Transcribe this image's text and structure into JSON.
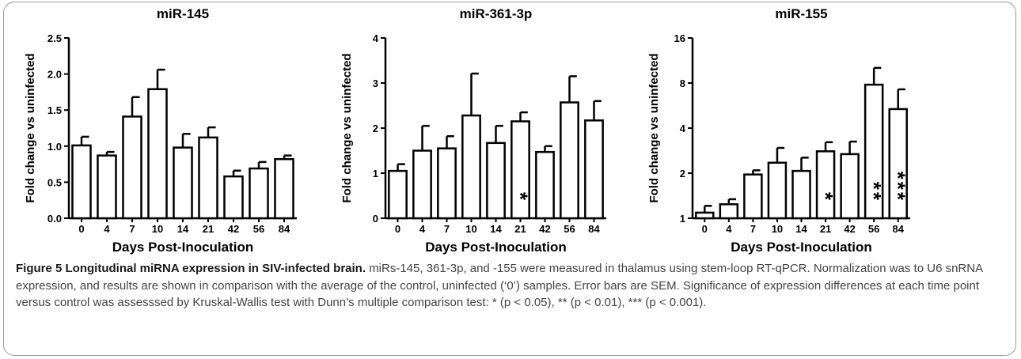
{
  "chart_data": [
    {
      "type": "bar",
      "title": "miR-145",
      "xlabel": "Days Post-Inoculation",
      "ylabel": "Fold change vs uninfected",
      "categories": [
        "0",
        "4",
        "7",
        "10",
        "14",
        "21",
        "42",
        "56",
        "84"
      ],
      "values": [
        1.01,
        0.87,
        1.41,
        1.79,
        0.98,
        1.12,
        0.58,
        0.69,
        0.82
      ],
      "errors": [
        0.12,
        0.05,
        0.27,
        0.27,
        0.19,
        0.14,
        0.08,
        0.09,
        0.05
      ],
      "ylim": [
        0,
        2.5
      ],
      "yticks": [
        {
          "value": 0,
          "label": "0.0"
        },
        0.5,
        {
          "value": 1,
          "label": "1.0"
        },
        1.5,
        {
          "value": 2,
          "label": "2.0"
        },
        2.5
      ],
      "color": "#ffffff",
      "annotations": []
    },
    {
      "type": "bar",
      "title": "miR-361-3p",
      "xlabel": "Days Post-Inoculation",
      "ylabel": "Fold change vs uninfected",
      "categories": [
        "0",
        "4",
        "7",
        "10",
        "14",
        "21",
        "42",
        "56",
        "84"
      ],
      "values": [
        1.05,
        1.5,
        1.55,
        2.28,
        1.67,
        2.15,
        1.47,
        2.57,
        2.17
      ],
      "errors": [
        0.15,
        0.55,
        0.27,
        0.93,
        0.38,
        0.2,
        0.13,
        0.58,
        0.43
      ],
      "ylim": [
        0,
        4
      ],
      "yticks": [
        0,
        1,
        2,
        3,
        4
      ],
      "color": "#ffffff",
      "annotations": [
        {
          "x": "21",
          "text": "*"
        }
      ]
    },
    {
      "type": "bar",
      "title": "miR-155",
      "xlabel": "Days Post-Inoculation",
      "ylabel": "Fold change vs uninfected",
      "categories": [
        "0",
        "4",
        "7",
        "10",
        "14",
        "21",
        "42",
        "56",
        "84"
      ],
      "values": [
        1.09,
        1.24,
        1.96,
        2.35,
        2.07,
        2.8,
        2.68,
        7.8,
        5.36
      ],
      "errors": [
        0.12,
        0.1,
        0.13,
        0.6,
        0.47,
        0.42,
        0.57,
        2.3,
        1.9
      ],
      "ylim": [
        1,
        16
      ],
      "yticks": [
        1,
        2,
        4,
        8,
        16
      ],
      "yscale": "log",
      "color": "#ffffff",
      "annotations": [
        {
          "x": "21",
          "text": "*"
        },
        {
          "x": "56",
          "text": "**"
        },
        {
          "x": "84",
          "text": "***"
        }
      ]
    }
  ],
  "caption": {
    "label": "Figure 5 Longitudinal miRNA expression in SIV-infected brain.",
    "text": "miRs-145, 361-3p, and -155 were measured in thalamus using stem-loop RT-qPCR. Normalization was to U6 snRNA expression, and results are shown in comparison with the average of the control, uninfected (‘0’) samples. Error bars are SEM. Significance of expression differences at each time point versus control was assesssed by Kruskal-Wallis test with Dunn’s multiple comparison test: * (p < 0.05), ** (p < 0.01), *** (p < 0.001)."
  }
}
